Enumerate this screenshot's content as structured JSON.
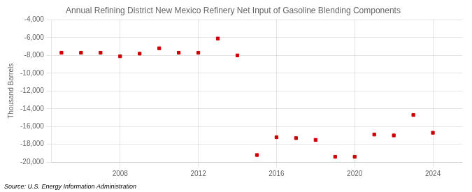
{
  "chart_data": {
    "type": "scatter",
    "title": "Annual Refining District New Mexico Refinery Net Input of Gasoline Blending Components",
    "ylabel": "Thousand Barrels",
    "annotation": "Source: U.S. Energy Information Administration",
    "x": [
      2005,
      2006,
      2007,
      2008,
      2009,
      2010,
      2011,
      2012,
      2013,
      2014,
      2015,
      2016,
      2017,
      2018,
      2019,
      2020,
      2021,
      2022,
      2023,
      2024
    ],
    "values": [
      -7700,
      -7700,
      -7700,
      -8100,
      -7800,
      -7200,
      -7700,
      -7700,
      -6100,
      -8000,
      -19200,
      -17200,
      -17300,
      -17500,
      -19400,
      -19400,
      -16900,
      -17000,
      -14700,
      -16700
    ],
    "color": "#cc0000",
    "marker": "square",
    "xlim": [
      2004.5,
      2025.5
    ],
    "xticks": [
      2008,
      2012,
      2016,
      2020,
      2024
    ],
    "ylim": [
      -20000,
      -4000
    ],
    "yticks": [
      {
        "value": -20000,
        "label": "-20,000"
      },
      {
        "value": -18000,
        "label": "-18,000"
      },
      {
        "value": -16000,
        "label": "-16,000"
      },
      {
        "value": -14000,
        "label": "-14,000"
      },
      {
        "value": -12000,
        "label": "-12,000"
      },
      {
        "value": -10000,
        "label": "-10,000"
      },
      {
        "value": -8000,
        "label": "-8,000"
      },
      {
        "value": -6000,
        "label": "-6,000"
      },
      {
        "value": -4000,
        "label": "-4,000"
      }
    ],
    "grid": true
  }
}
